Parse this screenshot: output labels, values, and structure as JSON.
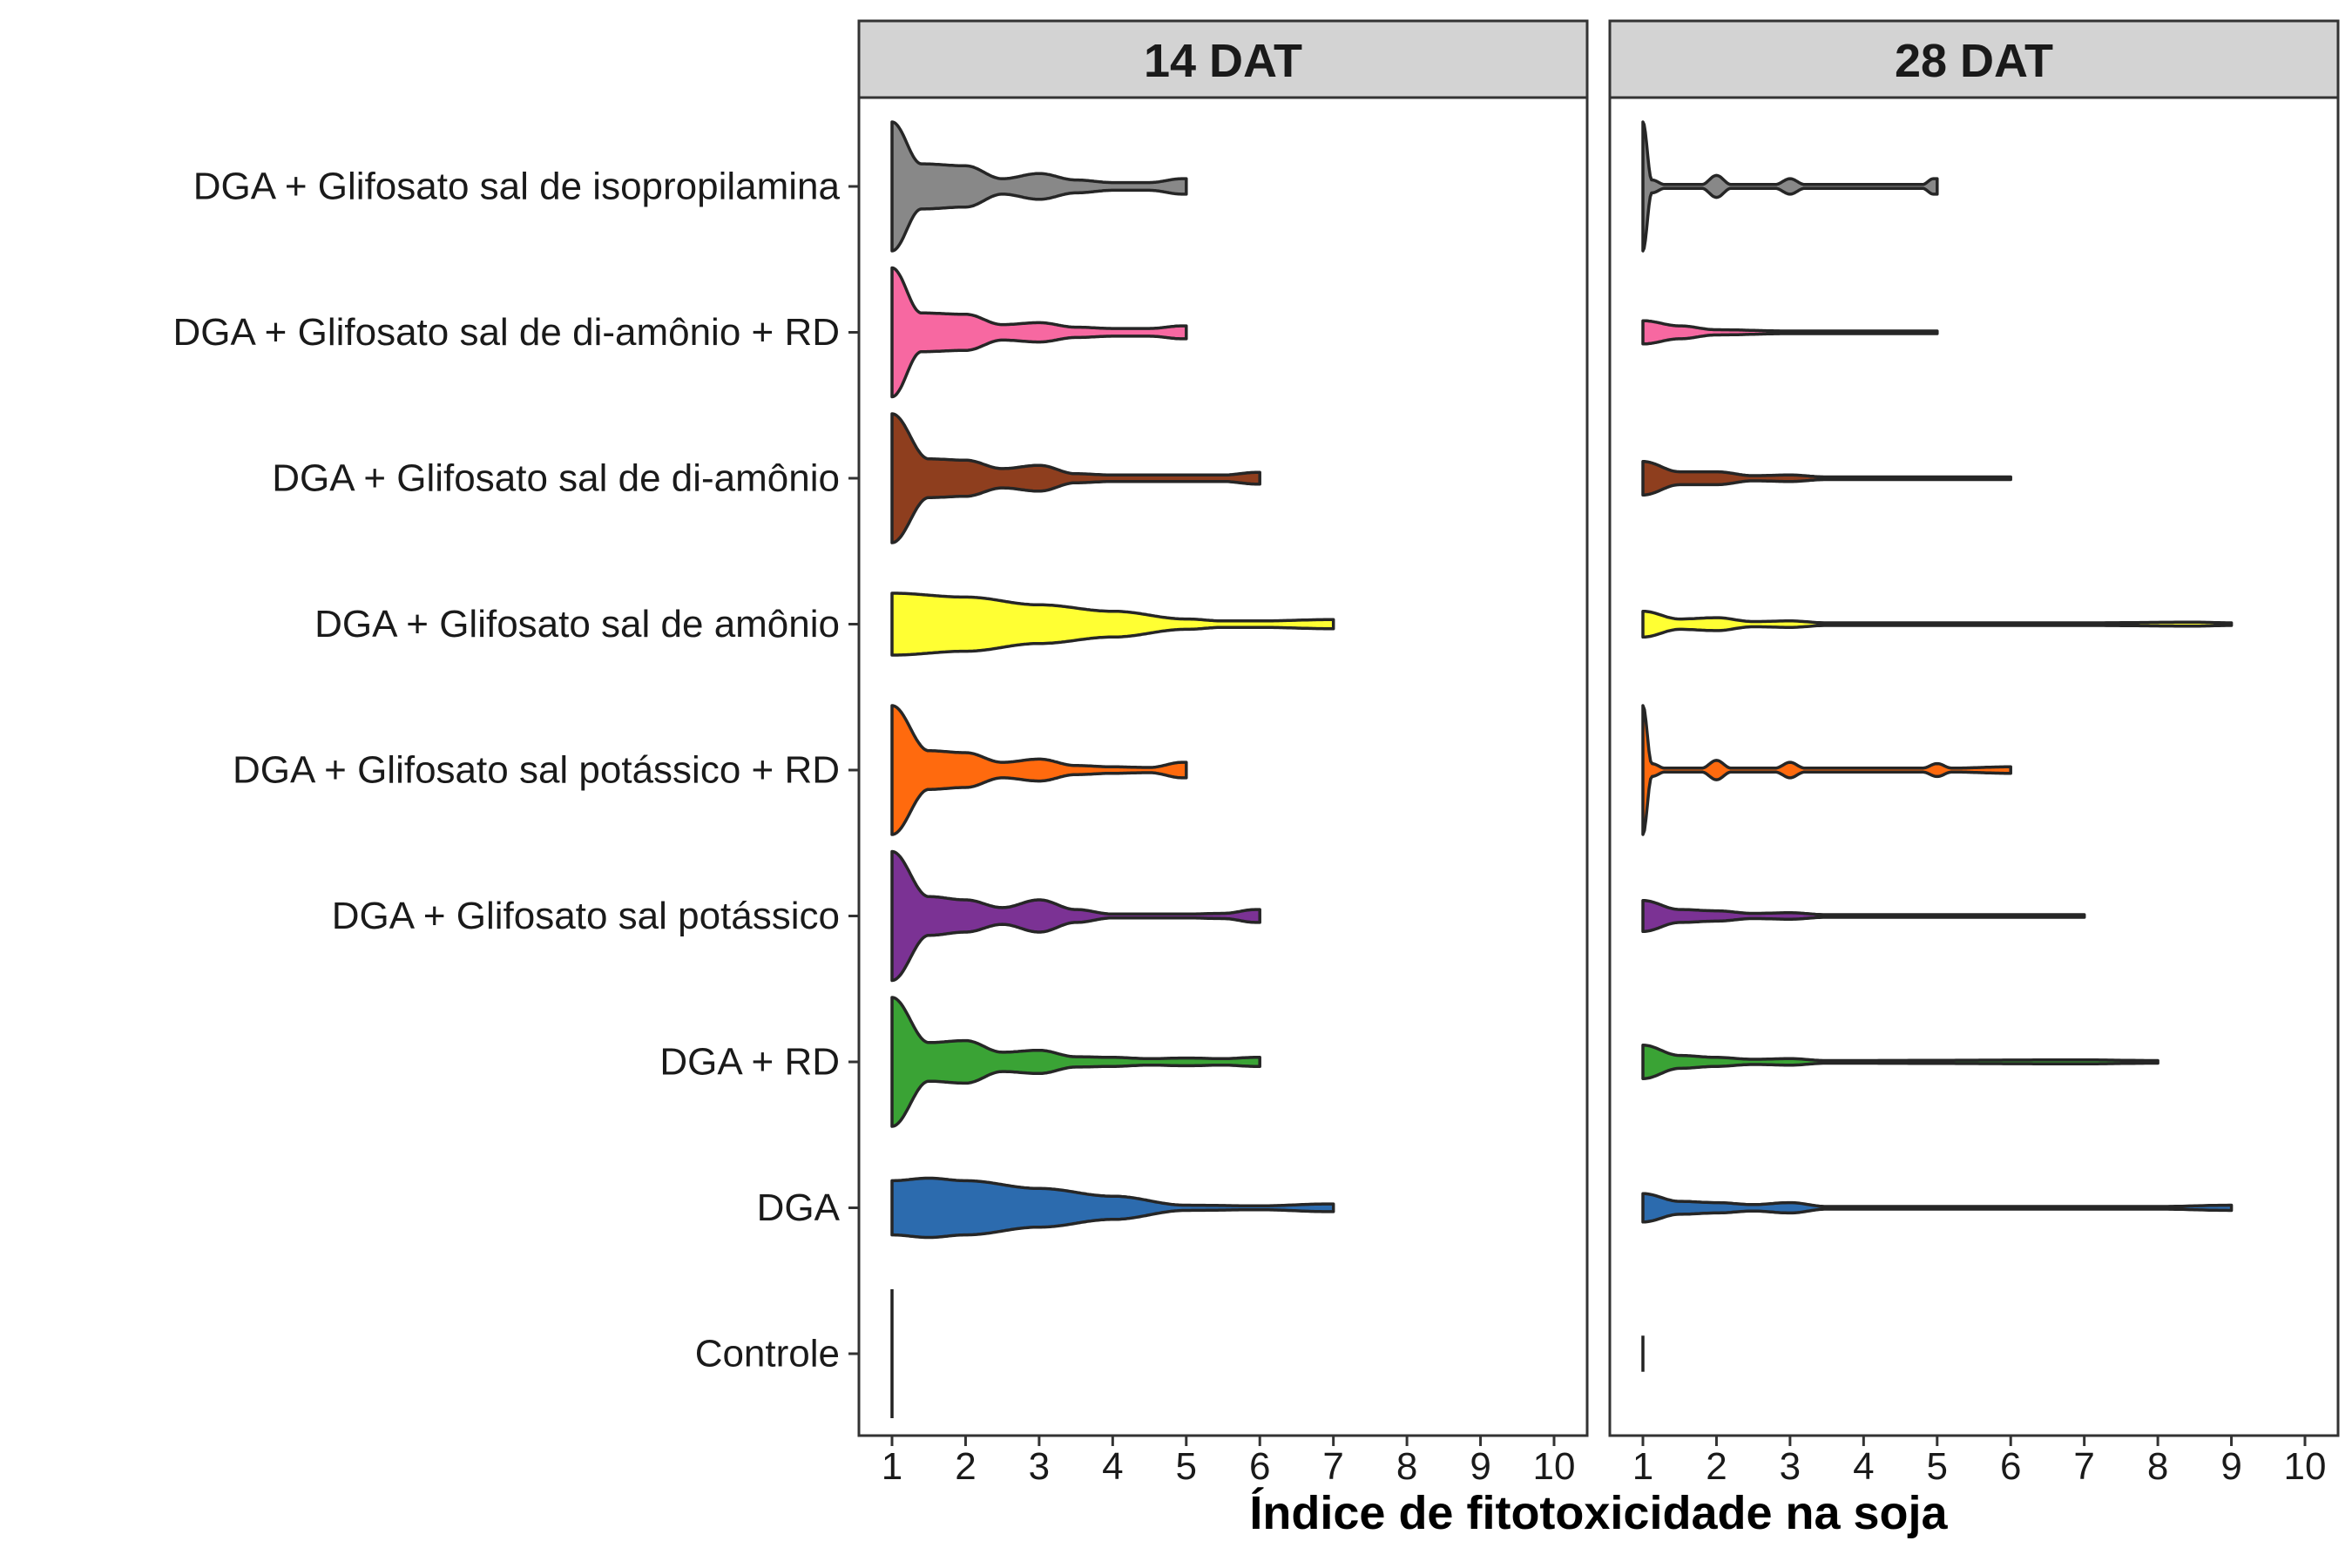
{
  "chart_data": {
    "type": "violin",
    "xlabel": "Índice de fitotoxicidade na soja",
    "ylabel": "",
    "xlim": [
      0.55,
      10.45
    ],
    "xticks": [
      1,
      2,
      3,
      4,
      5,
      6,
      7,
      8,
      9,
      10
    ],
    "categories": [
      "DGA + Glifosato sal de isopropilamina",
      "DGA + Glifosato sal de di-amônio + RD",
      "DGA + Glifosato sal de di-amônio",
      "DGA + Glifosato sal de amônio",
      "DGA + Glifosato sal potássico + RD",
      "DGA + Glifosato sal potássico",
      "DGA + RD",
      "DGA",
      "Controle"
    ],
    "colors": [
      "#888888",
      "#F768A1",
      "#8E3E1E",
      "#FFFF33",
      "#FF6A0E",
      "#7B3294",
      "#3AA335",
      "#2C6BAE",
      "#333333"
    ],
    "panels": [
      {
        "title": "14 DAT",
        "violins": [
          {
            "max": 5,
            "density": [
              [
                1,
                1.0
              ],
              [
                1.4,
                0.35
              ],
              [
                2,
                0.32
              ],
              [
                2.5,
                0.12
              ],
              [
                3,
                0.2
              ],
              [
                3.5,
                0.1
              ],
              [
                4,
                0.06
              ],
              [
                4.5,
                0.06
              ],
              [
                4.95,
                0.12
              ],
              [
                5,
                0.12
              ]
            ]
          },
          {
            "max": 5,
            "density": [
              [
                1,
                1.0
              ],
              [
                1.4,
                0.3
              ],
              [
                2,
                0.28
              ],
              [
                2.5,
                0.12
              ],
              [
                3,
                0.15
              ],
              [
                3.5,
                0.08
              ],
              [
                4,
                0.06
              ],
              [
                4.5,
                0.06
              ],
              [
                4.95,
                0.1
              ],
              [
                5,
                0.1
              ]
            ]
          },
          {
            "max": 6,
            "density": [
              [
                1,
                1.0
              ],
              [
                1.5,
                0.3
              ],
              [
                2,
                0.28
              ],
              [
                2.5,
                0.15
              ],
              [
                3,
                0.2
              ],
              [
                3.5,
                0.07
              ],
              [
                4,
                0.05
              ],
              [
                5,
                0.05
              ],
              [
                5.5,
                0.05
              ],
              [
                5.95,
                0.09
              ],
              [
                6,
                0.09
              ]
            ]
          },
          {
            "max": 7,
            "density": [
              [
                1,
                0.48
              ],
              [
                2,
                0.42
              ],
              [
                3,
                0.3
              ],
              [
                4,
                0.2
              ],
              [
                5,
                0.08
              ],
              [
                5.5,
                0.05
              ],
              [
                6,
                0.05
              ],
              [
                6.95,
                0.07
              ],
              [
                7,
                0.07
              ]
            ]
          },
          {
            "max": 5,
            "density": [
              [
                1,
                1.0
              ],
              [
                1.5,
                0.3
              ],
              [
                2,
                0.27
              ],
              [
                2.5,
                0.12
              ],
              [
                3,
                0.17
              ],
              [
                3.5,
                0.07
              ],
              [
                4,
                0.05
              ],
              [
                4.5,
                0.04
              ],
              [
                4.95,
                0.12
              ],
              [
                5,
                0.12
              ]
            ]
          },
          {
            "max": 6,
            "density": [
              [
                1,
                1.0
              ],
              [
                1.5,
                0.3
              ],
              [
                2,
                0.25
              ],
              [
                2.5,
                0.13
              ],
              [
                3,
                0.25
              ],
              [
                3.5,
                0.1
              ],
              [
                4,
                0.03
              ],
              [
                5,
                0.03
              ],
              [
                5.5,
                0.04
              ],
              [
                5.95,
                0.1
              ],
              [
                6,
                0.1
              ]
            ]
          },
          {
            "max": 6,
            "density": [
              [
                1,
                1.0
              ],
              [
                1.5,
                0.3
              ],
              [
                2,
                0.33
              ],
              [
                2.5,
                0.15
              ],
              [
                3,
                0.18
              ],
              [
                3.5,
                0.08
              ],
              [
                4,
                0.07
              ],
              [
                4.5,
                0.05
              ],
              [
                5,
                0.06
              ],
              [
                5.5,
                0.05
              ],
              [
                5.95,
                0.07
              ],
              [
                6,
                0.07
              ]
            ]
          },
          {
            "max": 7,
            "density": [
              [
                1,
                0.42
              ],
              [
                1.5,
                0.46
              ],
              [
                2,
                0.42
              ],
              [
                3,
                0.3
              ],
              [
                4,
                0.18
              ],
              [
                5,
                0.04
              ],
              [
                6,
                0.03
              ],
              [
                6.95,
                0.06
              ],
              [
                7,
                0.06
              ]
            ]
          },
          {
            "max": 1,
            "density": [
              [
                1,
                1.0
              ]
            ]
          }
        ]
      },
      {
        "title": "28 DAT",
        "violins": [
          {
            "max": 5,
            "density": [
              [
                1,
                1.0
              ],
              [
                1.12,
                0.1
              ],
              [
                1.3,
                0.03
              ],
              [
                1.8,
                0.03
              ],
              [
                2,
                0.17
              ],
              [
                2.2,
                0.03
              ],
              [
                2.8,
                0.03
              ],
              [
                3,
                0.12
              ],
              [
                3.2,
                0.03
              ],
              [
                4.8,
                0.03
              ],
              [
                4.95,
                0.12
              ],
              [
                5,
                0.12
              ]
            ]
          },
          {
            "max": 5,
            "density": [
              [
                1,
                0.18
              ],
              [
                1.5,
                0.1
              ],
              [
                2,
                0.04
              ],
              [
                3,
                0.02
              ],
              [
                4,
                0.02
              ],
              [
                5,
                0.02
              ]
            ]
          },
          {
            "max": 6,
            "density": [
              [
                1,
                0.26
              ],
              [
                1.5,
                0.1
              ],
              [
                2,
                0.1
              ],
              [
                2.5,
                0.04
              ],
              [
                3,
                0.05
              ],
              [
                3.5,
                0.02
              ],
              [
                6,
                0.02
              ]
            ]
          },
          {
            "max": 9,
            "density": [
              [
                1,
                0.2
              ],
              [
                1.5,
                0.08
              ],
              [
                2,
                0.1
              ],
              [
                2.5,
                0.04
              ],
              [
                3,
                0.05
              ],
              [
                3.5,
                0.02
              ],
              [
                7,
                0.02
              ],
              [
                8.5,
                0.03
              ],
              [
                9,
                0.02
              ]
            ]
          },
          {
            "max": 6,
            "density": [
              [
                1,
                1.0
              ],
              [
                1.12,
                0.1
              ],
              [
                1.3,
                0.03
              ],
              [
                1.8,
                0.03
              ],
              [
                2,
                0.15
              ],
              [
                2.2,
                0.03
              ],
              [
                2.8,
                0.03
              ],
              [
                3,
                0.12
              ],
              [
                3.2,
                0.03
              ],
              [
                4.8,
                0.03
              ],
              [
                5,
                0.1
              ],
              [
                5.2,
                0.03
              ],
              [
                6,
                0.05
              ]
            ]
          },
          {
            "max": 7,
            "density": [
              [
                1,
                0.24
              ],
              [
                1.5,
                0.1
              ],
              [
                2,
                0.08
              ],
              [
                2.5,
                0.04
              ],
              [
                3,
                0.05
              ],
              [
                3.5,
                0.02
              ],
              [
                6,
                0.02
              ],
              [
                7,
                0.02
              ]
            ]
          },
          {
            "max": 8,
            "density": [
              [
                1,
                0.26
              ],
              [
                1.5,
                0.1
              ],
              [
                2,
                0.07
              ],
              [
                2.5,
                0.04
              ],
              [
                3,
                0.05
              ],
              [
                3.5,
                0.02
              ],
              [
                7,
                0.03
              ],
              [
                8,
                0.02
              ]
            ]
          },
          {
            "max": 9,
            "density": [
              [
                1,
                0.22
              ],
              [
                1.5,
                0.1
              ],
              [
                2,
                0.08
              ],
              [
                2.5,
                0.05
              ],
              [
                3,
                0.08
              ],
              [
                3.5,
                0.02
              ],
              [
                8,
                0.02
              ],
              [
                9,
                0.04
              ]
            ]
          },
          {
            "max": 1,
            "density": [
              [
                1,
                0.28
              ]
            ]
          }
        ]
      }
    ]
  }
}
